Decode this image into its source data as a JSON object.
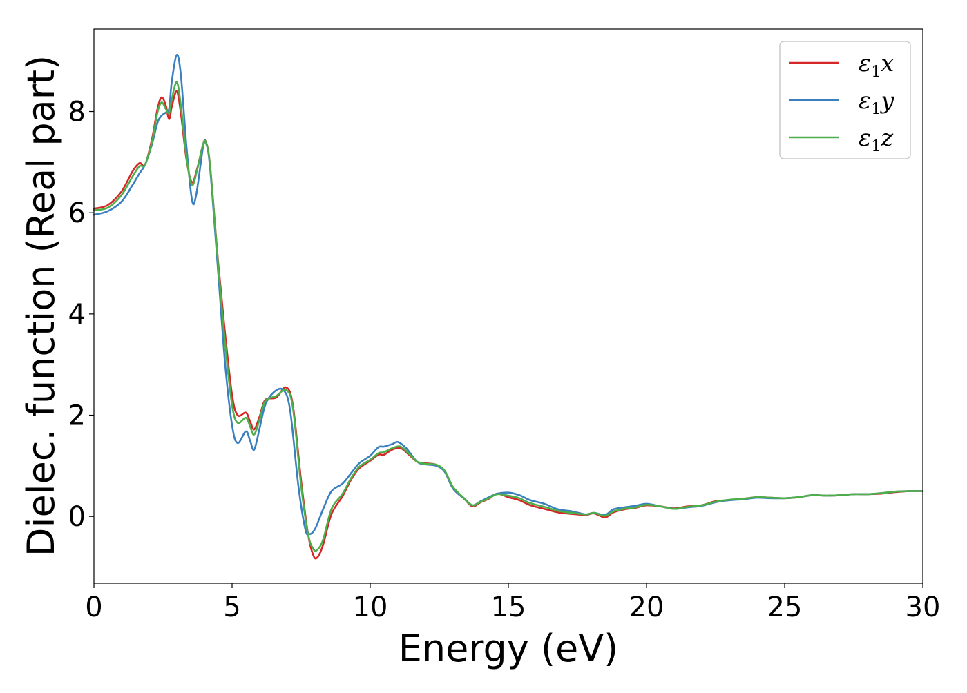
{
  "chart_data": {
    "type": "line",
    "title": "",
    "xlabel": "Energy (eV)",
    "ylabel": "Dielec. function (Real part)",
    "xlim": [
      0,
      30
    ],
    "ylim": [
      -1.32,
      9.63
    ],
    "xticks": [
      0,
      5,
      10,
      15,
      20,
      25,
      30
    ],
    "xtick_labels": [
      "0",
      "5",
      "10",
      "15",
      "20",
      "25",
      "30"
    ],
    "yticks": [
      0,
      2,
      4,
      6,
      8
    ],
    "ytick_labels": [
      "0",
      "2",
      "4",
      "6",
      "8"
    ],
    "grid": false,
    "legend_position": "top-right",
    "series": [
      {
        "name": "ε1x",
        "legend_symbol": "ε",
        "legend_sub": "1",
        "legend_var": "x",
        "color": "#d62728",
        "points": [
          [
            0,
            6.08
          ],
          [
            0.5,
            6.15
          ],
          [
            1.0,
            6.42
          ],
          [
            1.4,
            6.82
          ],
          [
            1.65,
            6.98
          ],
          [
            1.85,
            6.95
          ],
          [
            2.1,
            7.45
          ],
          [
            2.3,
            8.05
          ],
          [
            2.45,
            8.28
          ],
          [
            2.6,
            8.12
          ],
          [
            2.72,
            7.85
          ],
          [
            2.82,
            8.1
          ],
          [
            3.0,
            8.4
          ],
          [
            3.15,
            7.95
          ],
          [
            3.35,
            7.05
          ],
          [
            3.55,
            6.6
          ],
          [
            3.75,
            6.9
          ],
          [
            3.95,
            7.35
          ],
          [
            4.05,
            7.4
          ],
          [
            4.2,
            6.95
          ],
          [
            4.5,
            5.0
          ],
          [
            4.75,
            3.6
          ],
          [
            5.0,
            2.4
          ],
          [
            5.2,
            2.0
          ],
          [
            5.5,
            2.05
          ],
          [
            5.65,
            1.88
          ],
          [
            5.8,
            1.72
          ],
          [
            6.0,
            1.98
          ],
          [
            6.2,
            2.3
          ],
          [
            6.6,
            2.35
          ],
          [
            6.95,
            2.55
          ],
          [
            7.2,
            2.2
          ],
          [
            7.5,
            0.7
          ],
          [
            7.75,
            -0.35
          ],
          [
            7.95,
            -0.78
          ],
          [
            8.1,
            -0.8
          ],
          [
            8.3,
            -0.55
          ],
          [
            8.6,
            0.05
          ],
          [
            9.0,
            0.4
          ],
          [
            9.3,
            0.72
          ],
          [
            9.6,
            0.95
          ],
          [
            10.0,
            1.1
          ],
          [
            10.3,
            1.22
          ],
          [
            10.5,
            1.22
          ],
          [
            10.8,
            1.32
          ],
          [
            11.1,
            1.35
          ],
          [
            11.4,
            1.22
          ],
          [
            11.7,
            1.08
          ],
          [
            12.0,
            1.05
          ],
          [
            12.4,
            1.02
          ],
          [
            12.7,
            0.88
          ],
          [
            13.0,
            0.55
          ],
          [
            13.4,
            0.35
          ],
          [
            13.7,
            0.2
          ],
          [
            14.0,
            0.28
          ],
          [
            14.3,
            0.35
          ],
          [
            14.6,
            0.45
          ],
          [
            15.0,
            0.38
          ],
          [
            15.4,
            0.32
          ],
          [
            15.8,
            0.22
          ],
          [
            16.3,
            0.15
          ],
          [
            16.8,
            0.08
          ],
          [
            17.3,
            0.05
          ],
          [
            17.8,
            0.03
          ],
          [
            18.1,
            0.06
          ],
          [
            18.5,
            -0.02
          ],
          [
            18.8,
            0.08
          ],
          [
            19.2,
            0.14
          ],
          [
            19.6,
            0.17
          ],
          [
            20.0,
            0.22
          ],
          [
            20.5,
            0.2
          ],
          [
            21.0,
            0.16
          ],
          [
            21.5,
            0.2
          ],
          [
            22.0,
            0.22
          ],
          [
            22.5,
            0.3
          ],
          [
            23.0,
            0.32
          ],
          [
            23.5,
            0.35
          ],
          [
            24.0,
            0.38
          ],
          [
            24.5,
            0.37
          ],
          [
            25.0,
            0.36
          ],
          [
            25.5,
            0.38
          ],
          [
            26.0,
            0.42
          ],
          [
            26.5,
            0.41
          ],
          [
            27.0,
            0.42
          ],
          [
            27.5,
            0.44
          ],
          [
            28.0,
            0.44
          ],
          [
            28.5,
            0.45
          ],
          [
            29.0,
            0.48
          ],
          [
            29.5,
            0.5
          ],
          [
            30.0,
            0.5
          ]
        ]
      },
      {
        "name": "ε1y",
        "legend_symbol": "ε",
        "legend_sub": "1",
        "legend_var": "y",
        "color": "#3a7fbf",
        "points": [
          [
            0,
            5.96
          ],
          [
            0.5,
            6.03
          ],
          [
            1.0,
            6.22
          ],
          [
            1.4,
            6.55
          ],
          [
            1.65,
            6.78
          ],
          [
            1.85,
            6.95
          ],
          [
            2.1,
            7.35
          ],
          [
            2.3,
            7.78
          ],
          [
            2.45,
            7.92
          ],
          [
            2.6,
            7.98
          ],
          [
            2.72,
            8.05
          ],
          [
            2.82,
            8.6
          ],
          [
            3.0,
            9.12
          ],
          [
            3.15,
            8.7
          ],
          [
            3.35,
            7.3
          ],
          [
            3.55,
            6.25
          ],
          [
            3.7,
            6.35
          ],
          [
            3.95,
            7.3
          ],
          [
            4.05,
            7.38
          ],
          [
            4.2,
            6.9
          ],
          [
            4.5,
            4.8
          ],
          [
            4.75,
            3.0
          ],
          [
            5.0,
            1.8
          ],
          [
            5.2,
            1.45
          ],
          [
            5.5,
            1.68
          ],
          [
            5.65,
            1.5
          ],
          [
            5.8,
            1.32
          ],
          [
            6.0,
            1.75
          ],
          [
            6.2,
            2.2
          ],
          [
            6.5,
            2.45
          ],
          [
            6.85,
            2.5
          ],
          [
            7.1,
            2.1
          ],
          [
            7.4,
            0.6
          ],
          [
            7.65,
            -0.25
          ],
          [
            7.8,
            -0.35
          ],
          [
            8.0,
            -0.25
          ],
          [
            8.3,
            0.15
          ],
          [
            8.6,
            0.5
          ],
          [
            9.0,
            0.65
          ],
          [
            9.3,
            0.85
          ],
          [
            9.6,
            1.05
          ],
          [
            10.0,
            1.2
          ],
          [
            10.3,
            1.37
          ],
          [
            10.5,
            1.38
          ],
          [
            10.8,
            1.43
          ],
          [
            11.0,
            1.47
          ],
          [
            11.3,
            1.35
          ],
          [
            11.7,
            1.08
          ],
          [
            12.0,
            1.03
          ],
          [
            12.4,
            1.0
          ],
          [
            12.7,
            0.88
          ],
          [
            13.0,
            0.55
          ],
          [
            13.4,
            0.35
          ],
          [
            13.7,
            0.22
          ],
          [
            14.0,
            0.3
          ],
          [
            14.3,
            0.38
          ],
          [
            14.6,
            0.45
          ],
          [
            15.0,
            0.47
          ],
          [
            15.4,
            0.42
          ],
          [
            15.8,
            0.32
          ],
          [
            16.3,
            0.25
          ],
          [
            16.8,
            0.14
          ],
          [
            17.3,
            0.1
          ],
          [
            17.8,
            0.04
          ],
          [
            18.1,
            0.07
          ],
          [
            18.5,
            0.03
          ],
          [
            18.8,
            0.14
          ],
          [
            19.2,
            0.18
          ],
          [
            19.6,
            0.21
          ],
          [
            20.0,
            0.25
          ],
          [
            20.5,
            0.2
          ],
          [
            21.0,
            0.15
          ],
          [
            21.5,
            0.18
          ],
          [
            22.0,
            0.21
          ],
          [
            22.5,
            0.28
          ],
          [
            23.0,
            0.32
          ],
          [
            23.5,
            0.34
          ],
          [
            24.0,
            0.37
          ],
          [
            24.5,
            0.36
          ],
          [
            25.0,
            0.36
          ],
          [
            25.5,
            0.38
          ],
          [
            26.0,
            0.42
          ],
          [
            26.5,
            0.41
          ],
          [
            27.0,
            0.42
          ],
          [
            27.5,
            0.44
          ],
          [
            28.0,
            0.44
          ],
          [
            28.5,
            0.46
          ],
          [
            29.0,
            0.49
          ],
          [
            29.5,
            0.5
          ],
          [
            30.0,
            0.5
          ]
        ]
      },
      {
        "name": "ε1z",
        "legend_symbol": "ε",
        "legend_sub": "1",
        "legend_var": "z",
        "color": "#4daf4a",
        "points": [
          [
            0,
            6.05
          ],
          [
            0.5,
            6.1
          ],
          [
            1.0,
            6.35
          ],
          [
            1.4,
            6.72
          ],
          [
            1.65,
            6.92
          ],
          [
            1.85,
            6.95
          ],
          [
            2.1,
            7.4
          ],
          [
            2.3,
            7.98
          ],
          [
            2.45,
            8.18
          ],
          [
            2.6,
            8.05
          ],
          [
            2.72,
            7.97
          ],
          [
            2.82,
            8.25
          ],
          [
            3.0,
            8.58
          ],
          [
            3.15,
            8.1
          ],
          [
            3.35,
            7.1
          ],
          [
            3.55,
            6.55
          ],
          [
            3.75,
            6.88
          ],
          [
            3.95,
            7.35
          ],
          [
            4.05,
            7.38
          ],
          [
            4.2,
            6.95
          ],
          [
            4.5,
            4.95
          ],
          [
            4.75,
            3.4
          ],
          [
            5.0,
            2.2
          ],
          [
            5.2,
            1.85
          ],
          [
            5.5,
            1.95
          ],
          [
            5.65,
            1.78
          ],
          [
            5.8,
            1.62
          ],
          [
            6.0,
            1.92
          ],
          [
            6.2,
            2.28
          ],
          [
            6.6,
            2.38
          ],
          [
            6.95,
            2.5
          ],
          [
            7.2,
            2.15
          ],
          [
            7.5,
            0.6
          ],
          [
            7.75,
            -0.35
          ],
          [
            7.95,
            -0.65
          ],
          [
            8.1,
            -0.65
          ],
          [
            8.3,
            -0.45
          ],
          [
            8.6,
            0.15
          ],
          [
            9.0,
            0.45
          ],
          [
            9.3,
            0.75
          ],
          [
            9.6,
            0.98
          ],
          [
            10.0,
            1.12
          ],
          [
            10.3,
            1.25
          ],
          [
            10.5,
            1.27
          ],
          [
            10.8,
            1.35
          ],
          [
            11.1,
            1.38
          ],
          [
            11.4,
            1.24
          ],
          [
            11.7,
            1.08
          ],
          [
            12.0,
            1.04
          ],
          [
            12.4,
            1.02
          ],
          [
            12.7,
            0.9
          ],
          [
            13.0,
            0.58
          ],
          [
            13.4,
            0.36
          ],
          [
            13.7,
            0.22
          ],
          [
            14.0,
            0.29
          ],
          [
            14.3,
            0.36
          ],
          [
            14.6,
            0.44
          ],
          [
            15.0,
            0.41
          ],
          [
            15.4,
            0.36
          ],
          [
            15.8,
            0.26
          ],
          [
            16.3,
            0.19
          ],
          [
            16.8,
            0.11
          ],
          [
            17.3,
            0.07
          ],
          [
            17.8,
            0.04
          ],
          [
            18.1,
            0.07
          ],
          [
            18.5,
            0.01
          ],
          [
            18.8,
            0.1
          ],
          [
            19.2,
            0.15
          ],
          [
            19.6,
            0.18
          ],
          [
            20.0,
            0.23
          ],
          [
            20.5,
            0.2
          ],
          [
            21.0,
            0.15
          ],
          [
            21.5,
            0.19
          ],
          [
            22.0,
            0.22
          ],
          [
            22.5,
            0.29
          ],
          [
            23.0,
            0.33
          ],
          [
            23.5,
            0.35
          ],
          [
            24.0,
            0.38
          ],
          [
            24.5,
            0.37
          ],
          [
            25.0,
            0.36
          ],
          [
            25.5,
            0.38
          ],
          [
            26.0,
            0.42
          ],
          [
            26.5,
            0.41
          ],
          [
            27.0,
            0.42
          ],
          [
            27.5,
            0.44
          ],
          [
            28.0,
            0.44
          ],
          [
            28.5,
            0.46
          ],
          [
            29.0,
            0.49
          ],
          [
            29.5,
            0.5
          ],
          [
            30.0,
            0.5
          ]
        ]
      }
    ]
  }
}
